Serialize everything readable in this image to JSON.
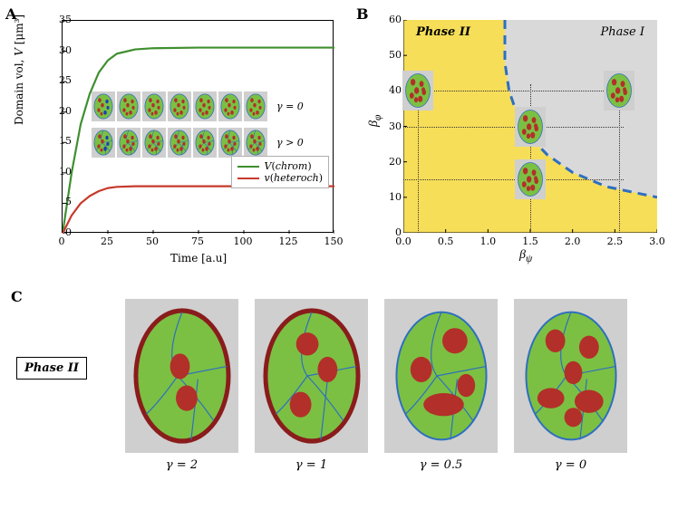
{
  "colors": {
    "chrom_line": "#3f8f2f",
    "heteroch_line": "#c63a2b",
    "axis": "#000000",
    "phase2_bg": "#f7de59",
    "phase1_bg": "#d9d9d9",
    "dash_line": "#2e6fbf",
    "dot_line": "#333333",
    "cell_bg": "#cfcfcf",
    "egg_fill": "#7bc043",
    "egg_stroke": "#2e6fbf",
    "blob": "#b23029",
    "lamina": "#8a1c1c",
    "blue_blob": "#1b3eb5"
  },
  "panelA": {
    "label": "A",
    "ylabel_pre": "Domain vol, ",
    "ylabel_var": "V",
    "ylabel_unit": " [μm³]",
    "xlabel": "Time [a.u]",
    "xlim": [
      0,
      150
    ],
    "xticks": [
      0,
      25,
      50,
      75,
      100,
      125,
      150
    ],
    "ylim": [
      0,
      35
    ],
    "yticks": [
      0,
      5,
      10,
      15,
      20,
      25,
      30,
      35
    ],
    "legend": [
      {
        "label_var": "V",
        "label_paren": "chrom",
        "color": "#3f8f2f"
      },
      {
        "label_var": "v",
        "label_paren": "heteroch",
        "color": "#c63a2b"
      }
    ],
    "chrom_curve": [
      [
        0,
        0
      ],
      [
        5,
        10
      ],
      [
        10,
        18
      ],
      [
        15,
        23
      ],
      [
        20,
        26.5
      ],
      [
        25,
        28.5
      ],
      [
        30,
        29.6
      ],
      [
        40,
        30.3
      ],
      [
        50,
        30.5
      ],
      [
        75,
        30.6
      ],
      [
        100,
        30.6
      ],
      [
        150,
        30.6
      ]
    ],
    "heteroch_curve": [
      [
        0,
        0
      ],
      [
        5,
        3
      ],
      [
        10,
        5
      ],
      [
        15,
        6.2
      ],
      [
        20,
        7
      ],
      [
        25,
        7.5
      ],
      [
        30,
        7.7
      ],
      [
        40,
        7.8
      ],
      [
        60,
        7.8
      ],
      [
        150,
        7.8
      ]
    ],
    "line_width": 2.2,
    "gamma0": "γ = 0",
    "gamma_pos": "γ > 0",
    "inset_fontsize": 11
  },
  "panelB": {
    "label": "B",
    "xlabel": "β",
    "xlabel_sub": "ψ",
    "ylabel": "β",
    "ylabel_sub": "φ",
    "xlim": [
      0,
      3.0
    ],
    "xticks": [
      0.0,
      0.5,
      1.0,
      1.5,
      2.0,
      2.5,
      3.0
    ],
    "ylim": [
      0,
      60
    ],
    "yticks": [
      0,
      10,
      20,
      30,
      40,
      50,
      60
    ],
    "phase1": "Phase I",
    "phase2": "Phase II",
    "dash_curve": [
      [
        1.2,
        60
      ],
      [
        1.2,
        48
      ],
      [
        1.25,
        40
      ],
      [
        1.35,
        33
      ],
      [
        1.5,
        27
      ],
      [
        1.7,
        22
      ],
      [
        2.0,
        17
      ],
      [
        2.4,
        13
      ],
      [
        2.8,
        11
      ],
      [
        3.0,
        10
      ]
    ],
    "dash_width": 3,
    "markers": [
      {
        "bx": 0.17,
        "by": 40
      },
      {
        "bx": 1.5,
        "by": 30
      },
      {
        "bx": 1.5,
        "by": 15
      },
      {
        "bx": 2.55,
        "by": 40
      }
    ],
    "dotted_h": [
      40,
      30,
      15
    ],
    "dotted_v": [
      0.17,
      1.5,
      2.55
    ]
  },
  "panelC": {
    "label": "C",
    "phase_label": "Phase II",
    "gammas": [
      "γ = 2",
      "γ = 1",
      "γ = 0.5",
      "γ = 0"
    ]
  }
}
